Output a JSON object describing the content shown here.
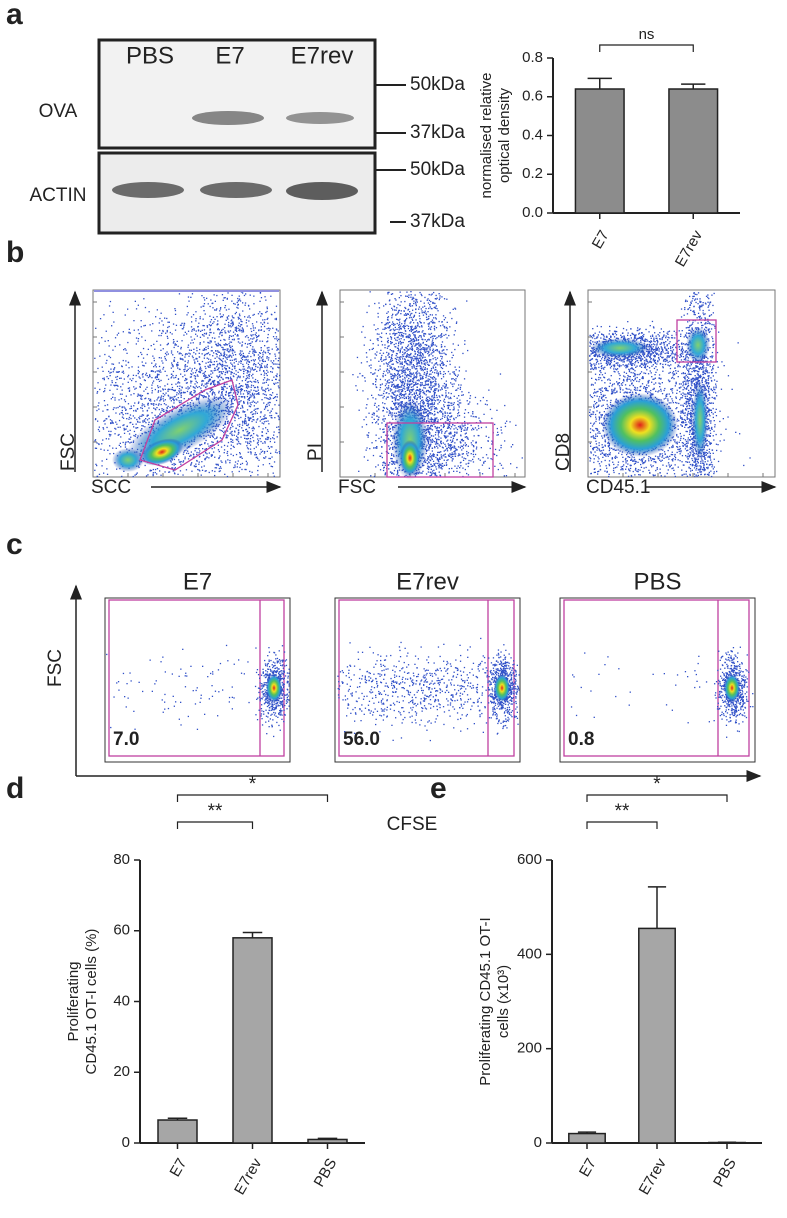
{
  "panel_labels": [
    "a",
    "b",
    "c",
    "d",
    "e"
  ],
  "blot": {
    "lanes": [
      "PBS",
      "E7",
      "E7rev"
    ],
    "rows": [
      "OVA",
      "ACTIN"
    ],
    "markers": [
      "50kDa",
      "37kDa",
      "50kDa",
      "37kDa"
    ]
  },
  "flow_gating": {
    "plots": [
      {
        "y_label": "FSC",
        "x_label": "SCC"
      },
      {
        "y_label": "PI",
        "x_label": "FSC"
      },
      {
        "y_label": "CD8",
        "x_label": "CD45.1"
      }
    ]
  },
  "proliferation": {
    "titles": [
      "E7",
      "E7rev",
      "PBS"
    ],
    "gate_values": [
      "7.0",
      "56.0",
      "0.8"
    ],
    "y_label": "FSC",
    "x_label": "CFSE"
  },
  "chart_data": [
    {
      "type": "bar",
      "y_label": [
        "normalised relative",
        "optical density"
      ],
      "categories": [
        "E7",
        "E7rev"
      ],
      "values": [
        0.64,
        0.64
      ],
      "errors": [
        0.055,
        0.025
      ],
      "color": "#8c8c8c",
      "ylim": [
        0,
        0.8
      ],
      "yticks": [
        {
          "value": 0,
          "label": "0.0"
        },
        0.2,
        0.4,
        0.6,
        0.8
      ],
      "annotations": [
        {
          "text": "ns",
          "between": [
            "E7",
            "E7rev"
          ]
        }
      ]
    },
    {
      "type": "bar",
      "y_label": [
        "Proliferating",
        "CD45.1 OT-I cells (%)"
      ],
      "categories": [
        "E7",
        "E7rev",
        "PBS"
      ],
      "values": [
        6.5,
        58,
        1
      ],
      "errors": [
        0.5,
        1.5,
        0.3
      ],
      "color": "#a6a6a6",
      "ylim": [
        0,
        80
      ],
      "yticks": [
        0,
        20,
        40,
        60,
        80
      ],
      "annotations": [
        {
          "text": "**",
          "between": [
            "E7",
            "E7rev"
          ]
        },
        {
          "text": "*",
          "between": [
            "E7",
            "PBS"
          ]
        }
      ]
    },
    {
      "type": "bar",
      "y_label": [
        "Proliferating CD45.1 OT-I",
        "cells (x10³)"
      ],
      "categories": [
        "E7",
        "E7rev",
        "PBS"
      ],
      "values": [
        20,
        455,
        1
      ],
      "errors": [
        3,
        88,
        0.5
      ],
      "color": "#a6a6a6",
      "ylim": [
        0,
        600
      ],
      "yticks": [
        0,
        200,
        400,
        600
      ],
      "annotations": [
        {
          "text": "**",
          "between": [
            "E7",
            "E7rev"
          ]
        },
        {
          "text": "*",
          "between": [
            "E7",
            "PBS"
          ]
        }
      ]
    }
  ]
}
